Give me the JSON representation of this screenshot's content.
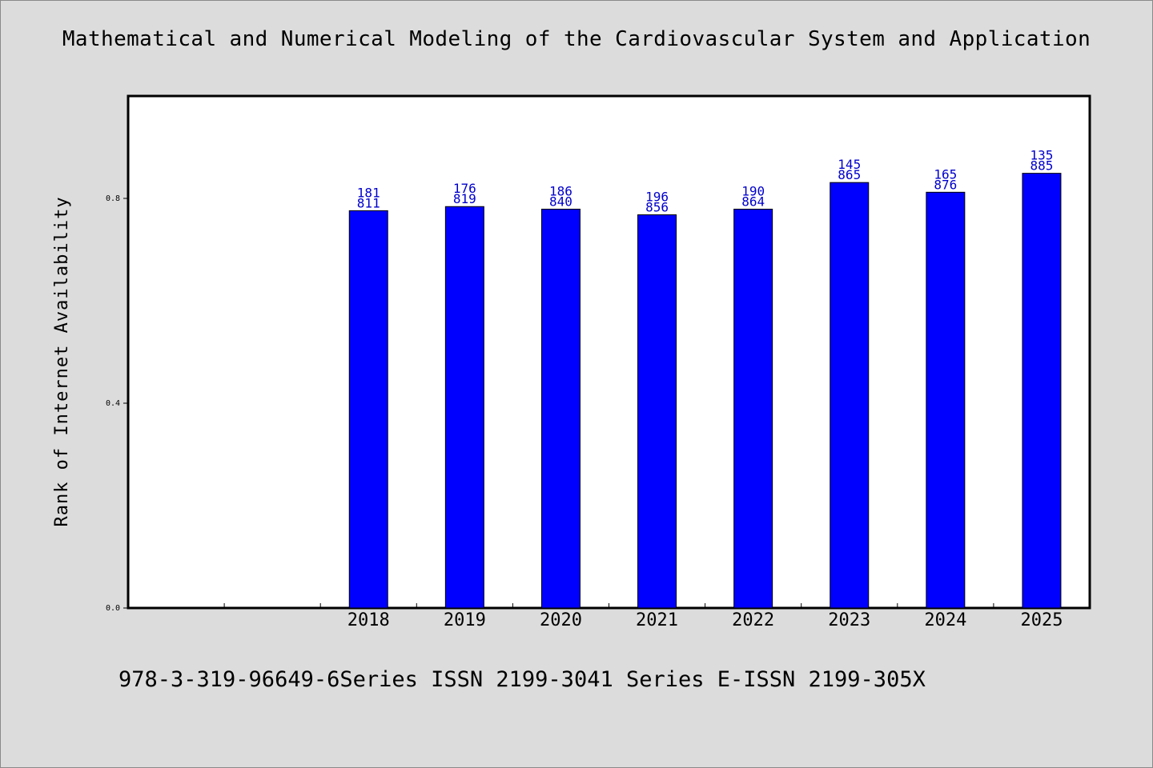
{
  "title": "Mathematical and Numerical Modeling of the Cardiovascular System and Application",
  "subtitle": "978-3-319-96649-6Series ISSN 2199-3041 Series E-ISSN 2199-305X",
  "colors": {
    "bar": "#0000ff",
    "label": "#0000cc",
    "background": "#dcdcdc",
    "plot": "#ffffff"
  },
  "chart_data": {
    "type": "bar",
    "ylabel": "Rank of Internet Availability",
    "xlabel": "",
    "ylim": [
      0,
      1.0
    ],
    "yticks": [
      "0.0",
      "0.4",
      "0.8"
    ],
    "categories": [
      "",
      "",
      "2018",
      "2019",
      "2020",
      "2021",
      "2022",
      "2023",
      "2024",
      "2025"
    ],
    "values": [
      null,
      null,
      0.776,
      0.784,
      0.779,
      0.768,
      0.779,
      0.831,
      0.812,
      0.849
    ],
    "data_labels": [
      null,
      null,
      [
        "181",
        "811"
      ],
      [
        "176",
        "819"
      ],
      [
        "186",
        "840"
      ],
      [
        "196",
        "856"
      ],
      [
        "190",
        "864"
      ],
      [
        "145",
        "865"
      ],
      [
        "165",
        "876"
      ],
      [
        "135",
        "885"
      ]
    ],
    "grid": false,
    "legend": "none"
  }
}
